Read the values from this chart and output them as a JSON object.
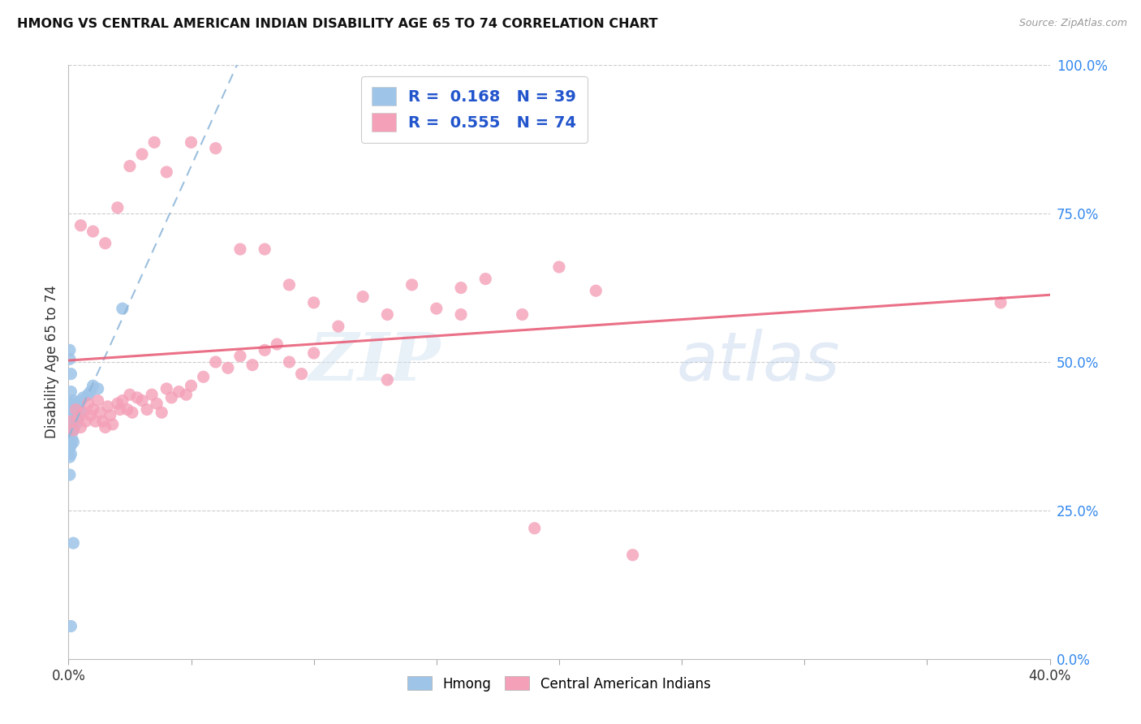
{
  "title": "HMONG VS CENTRAL AMERICAN INDIAN DISABILITY AGE 65 TO 74 CORRELATION CHART",
  "source": "Source: ZipAtlas.com",
  "ylabel": "Disability Age 65 to 74",
  "right_yticks": [
    0.0,
    0.25,
    0.5,
    0.75,
    1.0
  ],
  "right_yticklabels": [
    "0.0%",
    "25.0%",
    "50.0%",
    "75.0%",
    "100.0%"
  ],
  "hmong_R": 0.168,
  "hmong_N": 39,
  "ca_indian_R": 0.555,
  "ca_indian_N": 74,
  "hmong_color": "#9ec4e8",
  "ca_indian_color": "#f4a0b8",
  "hmong_line_color": "#8ab4d8",
  "ca_indian_line_color": "#e8607a",
  "legend_text_color": "#2255cc",
  "background_color": "#ffffff",
  "watermark_zip": "ZIP",
  "watermark_atlas": "atlas",
  "xlim": [
    0.0,
    0.4
  ],
  "ylim": [
    0.0,
    1.0
  ],
  "hmong_x": [
    0.0005,
    0.0005,
    0.0005,
    0.0005,
    0.0005,
    0.001,
    0.001,
    0.001,
    0.001,
    0.001,
    0.001,
    0.001,
    0.0015,
    0.0015,
    0.0015,
    0.0015,
    0.002,
    0.002,
    0.002,
    0.002,
    0.002,
    0.003,
    0.003,
    0.003,
    0.004,
    0.004,
    0.005,
    0.005,
    0.006,
    0.008,
    0.009,
    0.01,
    0.012,
    0.0005,
    0.0005,
    0.001,
    0.002,
    0.022,
    0.001
  ],
  "hmong_y": [
    0.385,
    0.37,
    0.355,
    0.34,
    0.31,
    0.45,
    0.43,
    0.415,
    0.4,
    0.385,
    0.36,
    0.345,
    0.43,
    0.415,
    0.39,
    0.37,
    0.435,
    0.42,
    0.405,
    0.385,
    0.365,
    0.43,
    0.415,
    0.395,
    0.425,
    0.405,
    0.435,
    0.415,
    0.44,
    0.445,
    0.45,
    0.46,
    0.455,
    0.52,
    0.505,
    0.48,
    0.195,
    0.59,
    0.055
  ],
  "ca_indian_x": [
    0.001,
    0.002,
    0.003,
    0.004,
    0.005,
    0.006,
    0.007,
    0.008,
    0.009,
    0.01,
    0.011,
    0.012,
    0.013,
    0.014,
    0.015,
    0.016,
    0.017,
    0.018,
    0.02,
    0.021,
    0.022,
    0.024,
    0.025,
    0.026,
    0.028,
    0.03,
    0.032,
    0.034,
    0.036,
    0.038,
    0.04,
    0.042,
    0.045,
    0.048,
    0.05,
    0.055,
    0.06,
    0.065,
    0.07,
    0.075,
    0.08,
    0.085,
    0.09,
    0.095,
    0.1,
    0.11,
    0.12,
    0.13,
    0.14,
    0.15,
    0.16,
    0.17,
    0.185,
    0.2,
    0.215,
    0.005,
    0.01,
    0.015,
    0.02,
    0.025,
    0.03,
    0.035,
    0.04,
    0.05,
    0.06,
    0.07,
    0.08,
    0.09,
    0.1,
    0.13,
    0.16,
    0.19,
    0.23,
    0.38
  ],
  "ca_indian_y": [
    0.4,
    0.385,
    0.42,
    0.405,
    0.39,
    0.415,
    0.4,
    0.43,
    0.41,
    0.42,
    0.4,
    0.435,
    0.415,
    0.4,
    0.39,
    0.425,
    0.41,
    0.395,
    0.43,
    0.42,
    0.435,
    0.42,
    0.445,
    0.415,
    0.44,
    0.435,
    0.42,
    0.445,
    0.43,
    0.415,
    0.455,
    0.44,
    0.45,
    0.445,
    0.46,
    0.475,
    0.5,
    0.49,
    0.51,
    0.495,
    0.52,
    0.53,
    0.5,
    0.48,
    0.515,
    0.56,
    0.61,
    0.58,
    0.63,
    0.59,
    0.625,
    0.64,
    0.58,
    0.66,
    0.62,
    0.73,
    0.72,
    0.7,
    0.76,
    0.83,
    0.85,
    0.87,
    0.82,
    0.87,
    0.86,
    0.69,
    0.69,
    0.63,
    0.6,
    0.47,
    0.58,
    0.22,
    0.175,
    0.6
  ]
}
